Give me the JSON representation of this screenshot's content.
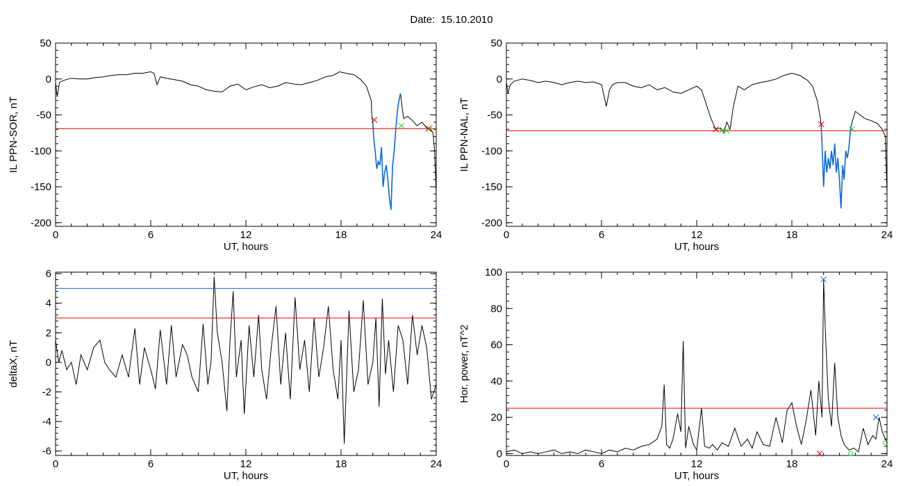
{
  "title": "Date:  15.10.2010",
  "colors": {
    "series": "#000000",
    "threshold": "#e00000",
    "threshold2": "#1060e0",
    "highlight": "#0b6ad8",
    "start_marker": "#e00000",
    "end_marker": "#22cc22"
  },
  "chart_data": [
    {
      "type": "line",
      "xlabel": "UT, hours",
      "ylabel": "IL PPN-SOR, nT",
      "xlim": [
        0,
        24
      ],
      "ylim": [
        -205,
        50
      ],
      "xticks": [
        "0",
        "6",
        "12",
        "18",
        "24"
      ],
      "yticks": [
        "50",
        "0",
        "-50",
        "-100",
        "-150",
        "-200"
      ],
      "grid": false,
      "thresholds": [
        {
          "value": -69,
          "color": "red"
        }
      ],
      "x": [
        0,
        0.1,
        0.25,
        0.5,
        1,
        1.5,
        2,
        2.5,
        3,
        3.5,
        4,
        4.5,
        5,
        5.5,
        6,
        6.2,
        6.4,
        6.6,
        7,
        7.5,
        8,
        8.5,
        9,
        9.5,
        10,
        10.5,
        11,
        11.5,
        12,
        12.5,
        13,
        13.5,
        14,
        14.5,
        15,
        15.5,
        16,
        16.5,
        17,
        17.5,
        17.9,
        18.3,
        18.8,
        19.2,
        19.6,
        19.75,
        19.9,
        19.95,
        20.0,
        20.05,
        20.15,
        20.25,
        20.35,
        20.45,
        20.55,
        20.65,
        20.75,
        20.85,
        20.95,
        21.05,
        21.15,
        21.25,
        21.35,
        21.45,
        21.55,
        21.65,
        21.75,
        21.85,
        21.95,
        22.2,
        22.5,
        22.8,
        23.1,
        23.4,
        23.6,
        23.8,
        23.9,
        24
      ],
      "series": [
        {
          "values": [
            -5,
            -25,
            -5,
            -2,
            1,
            0,
            0,
            2,
            3,
            5,
            6,
            6,
            8,
            8,
            10,
            8,
            -8,
            3,
            1,
            -1,
            -3,
            -8,
            -10,
            -15,
            -17,
            -18,
            -10,
            -7,
            -15,
            -11,
            -8,
            -12,
            -10,
            -5,
            -7,
            -8,
            -5,
            -2,
            3,
            5,
            10,
            8,
            6,
            0,
            -10,
            -20,
            -30,
            -55,
            -58,
            -80,
            -100,
            -125,
            -115,
            -120,
            -95,
            -150,
            -130,
            -120,
            -140,
            -165,
            -182,
            -120,
            -100,
            -70,
            -45,
            -30,
            -20,
            -40,
            -55,
            -52,
            -58,
            -65,
            -60,
            -68,
            -70,
            -75,
            -100,
            -160
          ]
        }
      ],
      "highlight_range": [
        20.0,
        21.8
      ],
      "markers": [
        {
          "x": 20.1,
          "y": -57,
          "color": "red",
          "symbol": "×"
        },
        {
          "x": 21.8,
          "y": -65,
          "color": "green",
          "symbol": "×"
        },
        {
          "x": 23.5,
          "y": -69,
          "color": "red",
          "symbol": "×"
        },
        {
          "x": 23.6,
          "y": -69,
          "color": "green",
          "symbol": "×"
        }
      ]
    },
    {
      "type": "line",
      "xlabel": "UT, hours",
      "ylabel": "IL PPN-NAL, nT",
      "xlim": [
        0,
        24
      ],
      "ylim": [
        -205,
        50
      ],
      "xticks": [
        "0",
        "6",
        "12",
        "18",
        "24"
      ],
      "yticks": [
        "50",
        "0",
        "-50",
        "-100",
        "-150",
        "-200"
      ],
      "grid": false,
      "thresholds": [
        {
          "value": -72,
          "color": "red"
        }
      ],
      "x": [
        0,
        0.1,
        0.25,
        0.5,
        1,
        1.5,
        2,
        2.5,
        3,
        3.5,
        4,
        4.5,
        5,
        5.5,
        6,
        6.3,
        6.5,
        6.7,
        7,
        7.5,
        8,
        8.5,
        9,
        9.5,
        10,
        10.5,
        11,
        11.5,
        12,
        12.3,
        12.6,
        12.9,
        13.2,
        13.5,
        13.7,
        13.9,
        14.1,
        14.3,
        14.6,
        15,
        15.5,
        16,
        16.5,
        17,
        17.5,
        18,
        18.5,
        19,
        19.3,
        19.6,
        19.8,
        19.85,
        19.9,
        20.0,
        20.1,
        20.2,
        20.3,
        20.4,
        20.5,
        20.6,
        20.7,
        20.8,
        20.9,
        21.0,
        21.1,
        21.2,
        21.3,
        21.4,
        21.5,
        21.6,
        21.7,
        21.8,
        22.0,
        22.3,
        22.6,
        23.0,
        23.4,
        23.7,
        23.9,
        24
      ],
      "series": [
        {
          "values": [
            -5,
            -20,
            -8,
            -3,
            0,
            -2,
            -5,
            -3,
            -5,
            -8,
            -5,
            -3,
            -5,
            -4,
            -8,
            -38,
            -15,
            -8,
            -5,
            -5,
            -10,
            -12,
            -8,
            -15,
            -12,
            -18,
            -20,
            -15,
            -10,
            -15,
            -35,
            -55,
            -70,
            -68,
            -75,
            -60,
            -70,
            -40,
            -10,
            -15,
            -8,
            -5,
            -3,
            0,
            5,
            8,
            5,
            -2,
            -10,
            -30,
            -55,
            -65,
            -90,
            -150,
            -100,
            -130,
            -110,
            -125,
            -100,
            -120,
            -90,
            -130,
            -110,
            -140,
            -180,
            -120,
            -140,
            -100,
            -110,
            -95,
            -70,
            -60,
            -45,
            -50,
            -55,
            -58,
            -62,
            -70,
            -80,
            -160
          ]
        }
      ],
      "highlight_range": [
        19.85,
        21.8
      ],
      "markers": [
        {
          "x": 13.2,
          "y": -70,
          "color": "red",
          "symbol": "×"
        },
        {
          "x": 13.6,
          "y": -72,
          "color": "green",
          "symbol": "×"
        },
        {
          "x": 13.9,
          "y": -72,
          "color": "green",
          "symbol": "×"
        },
        {
          "x": 19.85,
          "y": -63,
          "color": "red",
          "symbol": "×"
        },
        {
          "x": 21.8,
          "y": -70,
          "color": "green",
          "symbol": "×"
        }
      ]
    },
    {
      "type": "line",
      "xlabel": "UT, hours",
      "ylabel": "deltaX, nT",
      "xlim": [
        0,
        24
      ],
      "ylim": [
        -6.3,
        6.1
      ],
      "xticks": [
        "0",
        "6",
        "12",
        "18",
        "24"
      ],
      "yticks": [
        "6",
        "4",
        "2",
        "0",
        "-2",
        "-4",
        "-6"
      ],
      "grid": false,
      "thresholds": [
        {
          "value": 5.0,
          "color": "blue"
        },
        {
          "value": 3.0,
          "color": "red"
        }
      ],
      "x": [
        0,
        0.2,
        0.4,
        0.7,
        1,
        1.3,
        1.6,
        2,
        2.4,
        2.8,
        3.1,
        3.4,
        3.8,
        4.2,
        4.6,
        5,
        5.3,
        5.6,
        6,
        6.3,
        6.6,
        7,
        7.3,
        7.6,
        8,
        8.3,
        8.6,
        9,
        9.3,
        9.6,
        9.8,
        10,
        10.2,
        10.5,
        10.8,
        11,
        11.2,
        11.4,
        11.7,
        11.9,
        12.2,
        12.5,
        12.8,
        13,
        13.3,
        13.6,
        13.9,
        14.2,
        14.5,
        14.8,
        15.1,
        15.4,
        15.7,
        16,
        16.3,
        16.6,
        16.9,
        17.2,
        17.5,
        17.8,
        18,
        18.2,
        18.5,
        18.8,
        19.1,
        19.4,
        19.7,
        20,
        20.2,
        20.4,
        20.6,
        20.8,
        21.0,
        21.3,
        21.6,
        21.9,
        22.2,
        22.5,
        22.8,
        23.1,
        23.4,
        23.7,
        24
      ],
      "series": [
        {
          "values": [
            1.5,
            0,
            0.8,
            -0.5,
            0,
            -1.5,
            0.5,
            -0.5,
            1,
            1.5,
            0,
            -0.5,
            -1.0,
            0.5,
            -1.0,
            2.3,
            -1.5,
            1.0,
            -0.5,
            -1.8,
            2.2,
            -1.5,
            2.5,
            -1.0,
            1.2,
            0.5,
            -1.0,
            -2.0,
            2.6,
            -1.5,
            0,
            5.8,
            2.0,
            0,
            -3.3,
            1.5,
            4.8,
            -1.0,
            1.5,
            -3.5,
            2.5,
            -1.0,
            3.2,
            -0.5,
            -2.5,
            1.0,
            3.8,
            -1.5,
            2.0,
            -2.5,
            4.4,
            -0.5,
            1.5,
            -2.0,
            3.0,
            -1.0,
            1.0,
            3.8,
            -0.5,
            -2.5,
            1.5,
            -5.5,
            3.5,
            -2.0,
            -0.5,
            4.2,
            -1.5,
            0,
            3.0,
            -3.0,
            4.3,
            -0.8,
            1.5,
            -2.0,
            2.5,
            1.5,
            -1.5,
            3.2,
            0.5,
            2.5,
            1.0,
            -2.5,
            -1.5
          ]
        }
      ],
      "markers": []
    },
    {
      "type": "line",
      "xlabel": "UT, hours",
      "ylabel": "Hor. power, nT^2",
      "xlim": [
        0,
        24
      ],
      "ylim": [
        -1,
        100
      ],
      "xticks": [
        "0",
        "6",
        "12",
        "18",
        "24"
      ],
      "yticks": [
        "100",
        "80",
        "60",
        "40",
        "20",
        "0"
      ],
      "grid": false,
      "thresholds": [
        {
          "value": 25,
          "color": "red"
        }
      ],
      "x": [
        0,
        0.5,
        1,
        1.5,
        2,
        2.5,
        3,
        3.5,
        4,
        4.5,
        5,
        5.5,
        6,
        6.5,
        7,
        7.5,
        8,
        8.5,
        9,
        9.5,
        9.8,
        9.95,
        10.1,
        10.3,
        10.5,
        10.8,
        11,
        11.15,
        11.3,
        11.5,
        11.8,
        12,
        12.3,
        12.5,
        12.8,
        13,
        13.3,
        13.6,
        14,
        14.4,
        14.8,
        15.2,
        15.5,
        15.8,
        16.2,
        16.6,
        17,
        17.4,
        17.7,
        18,
        18.3,
        18.6,
        18.9,
        19.2,
        19.5,
        19.7,
        19.9,
        20.0,
        20.1,
        20.3,
        20.5,
        20.7,
        20.9,
        21.1,
        21.3,
        21.6,
        21.9,
        22.2,
        22.5,
        22.8,
        23.1,
        23.3,
        23.5,
        23.7,
        23.9,
        24
      ],
      "series": [
        {
          "values": [
            1,
            2,
            0,
            1,
            0,
            1,
            2,
            0,
            1,
            0,
            2,
            1,
            0,
            2,
            1,
            3,
            2,
            4,
            5,
            8,
            15,
            38,
            5,
            3,
            8,
            22,
            12,
            62,
            3,
            15,
            5,
            2,
            25,
            4,
            3,
            5,
            2,
            6,
            4,
            14,
            4,
            8,
            3,
            12,
            5,
            4,
            20,
            6,
            24,
            28,
            15,
            5,
            18,
            35,
            10,
            40,
            20,
            96,
            70,
            30,
            15,
            50,
            20,
            10,
            5,
            2,
            3,
            1,
            14,
            5,
            10,
            8,
            20,
            12,
            8,
            6
          ]
        }
      ],
      "markers": [
        {
          "x": 20.0,
          "y": 96,
          "color": "blue",
          "symbol": "×"
        },
        {
          "x": 19.75,
          "y": 0,
          "color": "red",
          "symbol": "×"
        },
        {
          "x": 21.7,
          "y": 0,
          "color": "green",
          "symbol": "○"
        },
        {
          "x": 23.3,
          "y": 20,
          "color": "blue",
          "symbol": "×"
        },
        {
          "x": 23.9,
          "y": 6,
          "color": "green",
          "symbol": "○"
        }
      ]
    }
  ]
}
